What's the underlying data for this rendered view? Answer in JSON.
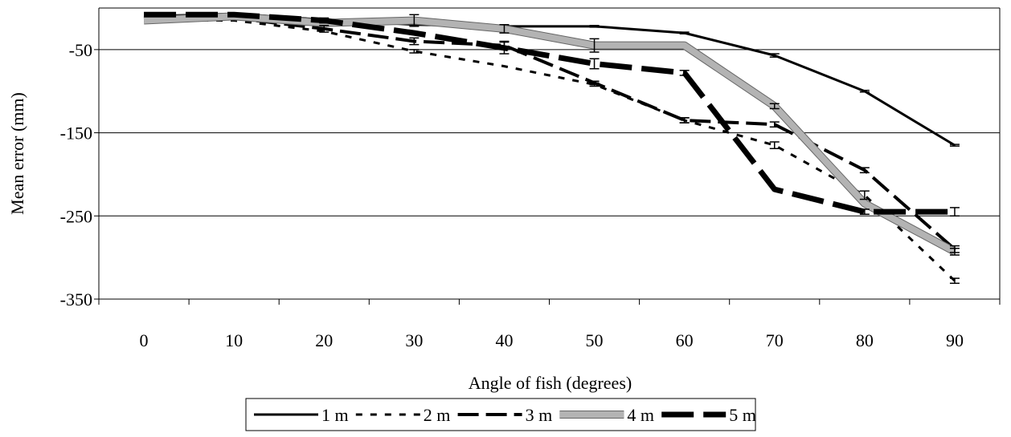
{
  "chart_data": {
    "type": "line",
    "xlabel": "Angle of fish (degrees)",
    "ylabel": "Mean error (mm)",
    "categories": [
      "0",
      "10",
      "20",
      "30",
      "40",
      "50",
      "60",
      "70",
      "80",
      "90"
    ],
    "x": [
      0,
      10,
      20,
      30,
      40,
      50,
      60,
      70,
      80,
      90
    ],
    "ylim": [
      -350,
      0
    ],
    "yticks": [
      -50,
      -150,
      -250,
      -350
    ],
    "grid": true,
    "legend_position": "bottom",
    "series": [
      {
        "name": "1 m",
        "style": "solid-thin",
        "color": "#000000",
        "values": [
          -10,
          -7,
          -14,
          -20,
          -22,
          -22,
          -30,
          -57,
          -100,
          -165
        ],
        "errors": [
          0,
          0,
          0,
          0,
          0,
          1,
          1,
          2,
          1,
          1
        ]
      },
      {
        "name": "2 m",
        "style": "dotted",
        "color": "#000000",
        "values": [
          -15,
          -15,
          -28,
          -52,
          -70,
          -92,
          -135,
          -165,
          -225,
          -328
        ],
        "errors": [
          0,
          0,
          0,
          2,
          0,
          2,
          3,
          4,
          5,
          3
        ]
      },
      {
        "name": "3 m",
        "style": "dashed",
        "color": "#000000",
        "values": [
          -15,
          -12,
          -25,
          -40,
          -45,
          -90,
          -135,
          -140,
          -195,
          -290
        ],
        "errors": [
          0,
          0,
          4,
          4,
          5,
          2,
          3,
          3,
          3,
          4
        ]
      },
      {
        "name": "4 m",
        "style": "thick-gray",
        "color": "#999999",
        "values": [
          -15,
          -10,
          -18,
          -15,
          -25,
          -45,
          -45,
          -118,
          -235,
          -293
        ],
        "errors": [
          0,
          0,
          0,
          7,
          5,
          8,
          0,
          3,
          0,
          4
        ]
      },
      {
        "name": "5 m",
        "style": "heavy-dashed",
        "color": "#000000",
        "values": [
          -8,
          -8,
          -15,
          -30,
          -48,
          -67,
          -78,
          -218,
          -245,
          -245
        ],
        "errors": [
          0,
          0,
          3,
          0,
          7,
          6,
          3,
          0,
          3,
          5
        ]
      }
    ]
  }
}
